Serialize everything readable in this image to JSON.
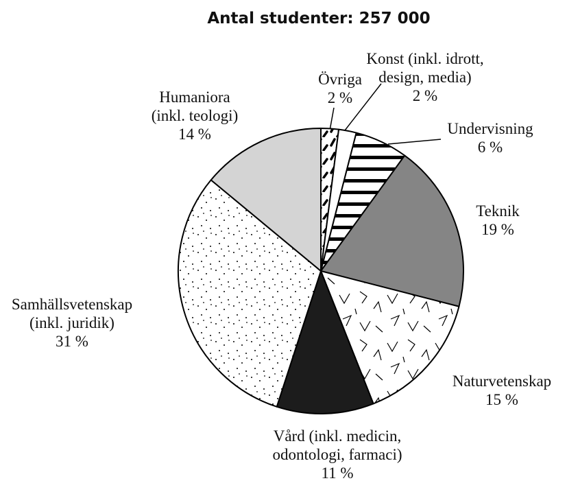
{
  "chart_data": {
    "type": "pie",
    "title": "Antal studenter: 257 000",
    "categories": [
      "Övriga",
      "Konst (inkl. idrott, design, media)",
      "Undervisning",
      "Teknik",
      "Naturvetenskap",
      "Vård (inkl. medicin, odontologi, farmaci)",
      "Samhällsvetenskap (inkl. juridik)",
      "Humaniora (inkl. teologi)"
    ],
    "values": [
      2,
      2,
      6,
      19,
      15,
      11,
      31,
      14
    ],
    "value_labels": [
      "2 %",
      "2 %",
      "6 %",
      "19 %",
      "15 %",
      "11 %",
      "31 %",
      "14 %"
    ]
  }
}
